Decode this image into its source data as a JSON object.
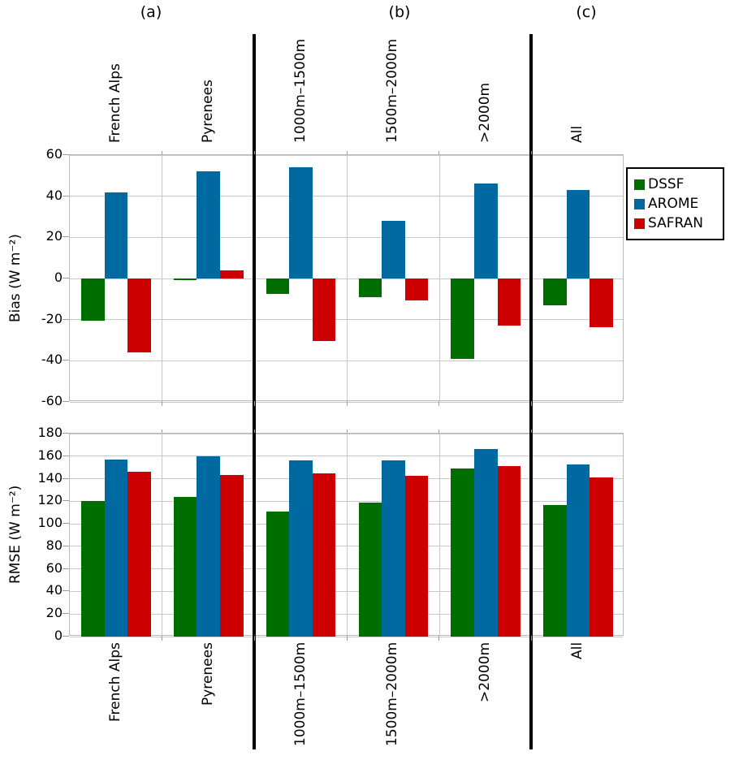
{
  "chart_data": {
    "type": "bar",
    "title": "",
    "section_labels": [
      "(a)",
      "(b)",
      "(c)"
    ],
    "categories": [
      "French Alps",
      "Pyrenees",
      "1000m–1500m",
      "1500m–2000m",
      ">2000m",
      "All"
    ],
    "series_names": [
      "DSSF",
      "AROME",
      "SAFRAN"
    ],
    "series_colors": {
      "DSSF": "#006e00",
      "AROME": "#0069a0",
      "SAFRAN": "#cc0000"
    },
    "legend": {
      "entries": [
        "DSSF",
        "AROME",
        "SAFRAN"
      ],
      "position": "top-right-outside"
    },
    "grid": true,
    "dividers_after_category_index": [
      1,
      4
    ],
    "panels": [
      {
        "ylabel": "Bias (W m⁻²)",
        "ylim": [
          -60,
          60
        ],
        "yticks": [
          60,
          40,
          20,
          0,
          -20,
          -40,
          -60
        ],
        "series": [
          {
            "name": "DSSF",
            "values": [
              -20.5,
              -0.7,
              -7.5,
              -9,
              -39,
              -13
            ]
          },
          {
            "name": "AROME",
            "values": [
              42,
              52,
              54,
              28,
              46,
              43
            ]
          },
          {
            "name": "SAFRAN",
            "values": [
              -36,
              4,
              -30.5,
              -10.5,
              -23,
              -23.5
            ]
          }
        ]
      },
      {
        "ylabel": "RMSE (W m⁻²)",
        "ylim": [
          0,
          180
        ],
        "yticks": [
          180,
          160,
          140,
          120,
          100,
          80,
          60,
          40,
          20,
          0
        ],
        "series": [
          {
            "name": "DSSF",
            "values": [
              120,
              124,
              111,
              119,
              149,
              117
            ]
          },
          {
            "name": "AROME",
            "values": [
              157,
              160,
              156,
              156.5,
              166,
              153
            ]
          },
          {
            "name": "SAFRAN",
            "values": [
              146,
              143.5,
              144.5,
              142.5,
              151,
              141
            ]
          }
        ]
      }
    ]
  }
}
